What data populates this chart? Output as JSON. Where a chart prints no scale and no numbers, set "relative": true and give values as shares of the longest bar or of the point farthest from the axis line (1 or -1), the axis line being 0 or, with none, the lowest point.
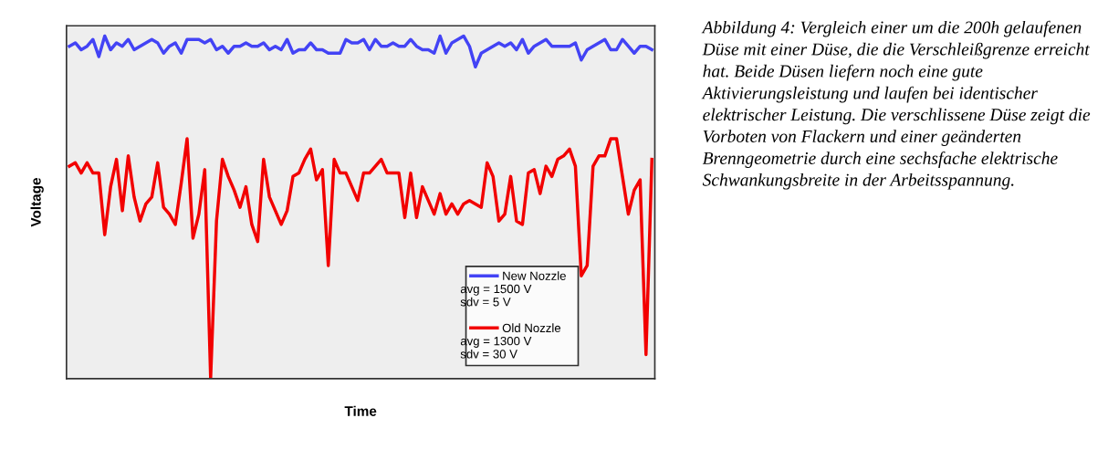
{
  "chart_data": {
    "type": "line",
    "relative": true,
    "xlabel": "Time",
    "ylabel": "Voltage",
    "categories": [
      null,
      null,
      null,
      null,
      null,
      null,
      null,
      null,
      null,
      null,
      null,
      null,
      null,
      null,
      null,
      null,
      null,
      null,
      null,
      null,
      null,
      null,
      null,
      null,
      null,
      null,
      null,
      null,
      null,
      null,
      null,
      null,
      null,
      null,
      null,
      null,
      null,
      null,
      null,
      null,
      null,
      null,
      null,
      null,
      null,
      null,
      null,
      null,
      null,
      null,
      null,
      null,
      null,
      null,
      null,
      null,
      null,
      null,
      null,
      null,
      null,
      null,
      null,
      null,
      null,
      null,
      null,
      null,
      null,
      null,
      null,
      null,
      null,
      null,
      null,
      null,
      null,
      null,
      null,
      null,
      null,
      null,
      null,
      null,
      null,
      null,
      null,
      null,
      null,
      null,
      null,
      null,
      null,
      null,
      null,
      null,
      null,
      null,
      null,
      null
    ],
    "series": [
      {
        "name": "New Nozzle",
        "color": "#4343f5",
        "values": [
          0.97,
          0.98,
          0.96,
          0.97,
          0.99,
          0.94,
          1.0,
          0.96,
          0.98,
          0.97,
          0.99,
          0.96,
          0.97,
          0.98,
          0.99,
          0.98,
          0.95,
          0.97,
          0.98,
          0.95,
          0.99,
          0.99,
          0.99,
          0.98,
          0.99,
          0.96,
          0.97,
          0.95,
          0.97,
          0.97,
          0.98,
          0.97,
          0.97,
          0.98,
          0.96,
          0.97,
          0.96,
          0.99,
          0.95,
          0.96,
          0.96,
          0.98,
          0.96,
          0.96,
          0.95,
          0.95,
          0.95,
          0.99,
          0.98,
          0.98,
          0.99,
          0.96,
          0.99,
          0.97,
          0.97,
          0.98,
          0.97,
          0.97,
          0.99,
          0.97,
          0.96,
          0.96,
          0.95,
          1.0,
          0.95,
          0.98,
          0.99,
          1.0,
          0.97,
          0.91,
          0.95,
          0.96,
          0.97,
          0.98,
          0.97,
          0.98,
          0.96,
          0.99,
          0.95,
          0.97,
          0.98,
          0.99,
          0.97,
          0.97,
          0.97,
          0.97,
          0.98,
          0.93,
          0.96,
          0.97,
          0.98,
          0.99,
          0.96,
          0.96,
          0.99,
          0.97,
          0.95,
          0.97,
          0.97,
          0.96
        ]
      },
      {
        "name": "Old Nozzle",
        "color": "#f20000",
        "values": [
          0.62,
          0.63,
          0.6,
          0.63,
          0.6,
          0.6,
          0.42,
          0.56,
          0.64,
          0.49,
          0.65,
          0.53,
          0.46,
          0.51,
          0.53,
          0.63,
          0.5,
          0.48,
          0.45,
          0.57,
          0.7,
          0.41,
          0.48,
          0.61,
          0.0,
          0.46,
          0.64,
          0.59,
          0.55,
          0.5,
          0.56,
          0.45,
          0.4,
          0.64,
          0.53,
          0.49,
          0.45,
          0.49,
          0.59,
          0.6,
          0.64,
          0.67,
          0.58,
          0.61,
          0.33,
          0.64,
          0.6,
          0.6,
          0.56,
          0.52,
          0.6,
          0.6,
          0.62,
          0.64,
          0.6,
          0.6,
          0.6,
          0.47,
          0.6,
          0.47,
          0.56,
          0.52,
          0.48,
          0.54,
          0.48,
          0.51,
          0.48,
          0.51,
          0.52,
          0.51,
          0.5,
          0.63,
          0.59,
          0.46,
          0.48,
          0.59,
          0.46,
          0.45,
          0.6,
          0.61,
          0.54,
          0.62,
          0.59,
          0.64,
          0.65,
          0.67,
          0.62,
          0.3,
          0.33,
          0.62,
          0.65,
          0.65,
          0.7,
          0.7,
          0.59,
          0.48,
          0.55,
          0.58,
          0.07,
          0.64
        ]
      }
    ],
    "legend": "bottom right",
    "grid": false,
    "marker": "none",
    "line_style": "solid",
    "annotations": [
      "avg = 1500 V",
      "sdv = 5 V",
      "avg = 1300 V",
      "sdv = 30 V",
      "Abbildung 4: Vergleich einer um die 200h gelaufenen Düse mit einer Düse, die die Verschleißgrenze erreicht hat. Beide Düsen liefern noch eine gute Aktivierungsleistung und laufen bei identischer elektrischer Leistung. Die verschlissene Düse zeigt die Vorboten von Flackern und einer geänderten Brenngeometrie durch eine sechsfache elektrische Schwankungsbreite in der Arbeitsspannung."
    ]
  }
}
